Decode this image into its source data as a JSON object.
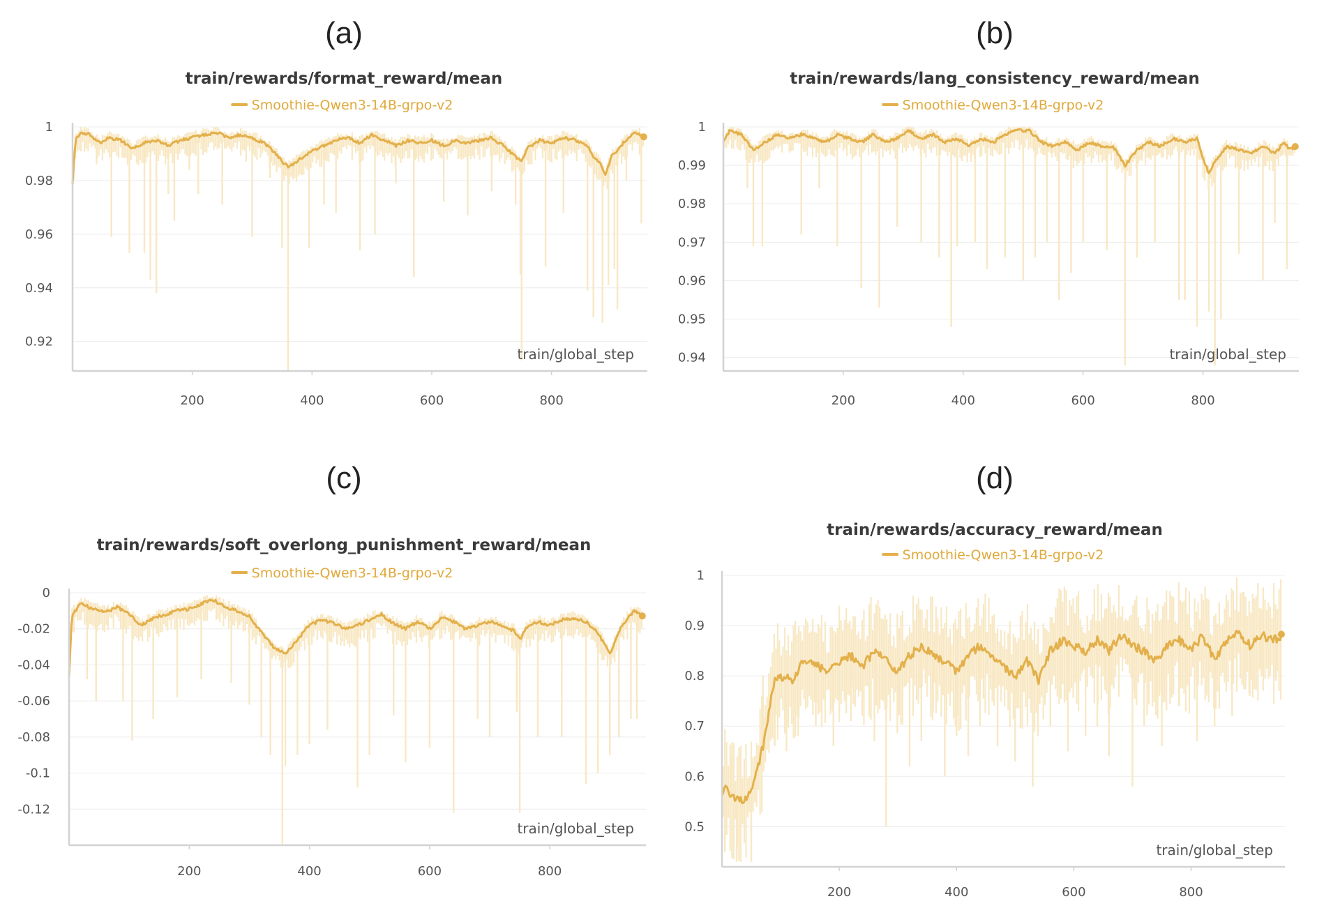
{
  "colors": {
    "series": "#e3b04b",
    "raw": "#f8e8c4"
  },
  "chart_data": [
    {
      "label": "(a)",
      "type": "line",
      "title": "train/rewards/format_reward/mean",
      "legend": "Smoothie-Qwen3-14B-grpo-v2",
      "xlabel": "train/global_step",
      "xlim": [
        0,
        960
      ],
      "ylim": [
        0.909,
        1.0
      ],
      "xticks": [
        200,
        400,
        600,
        800
      ],
      "xtick_labels": [
        "200",
        "400",
        "600",
        "800"
      ],
      "yticks": [
        1.0,
        0.98,
        0.96,
        0.94,
        0.92
      ],
      "ytick_labels": [
        "1",
        "0.98",
        "0.96",
        "0.94",
        "0.92"
      ],
      "smoothed": {
        "x": [
          0,
          5,
          15,
          30,
          45,
          60,
          80,
          100,
          120,
          140,
          160,
          180,
          200,
          220,
          240,
          260,
          280,
          300,
          320,
          340,
          350,
          360,
          380,
          400,
          420,
          440,
          460,
          480,
          500,
          520,
          540,
          560,
          580,
          600,
          620,
          640,
          660,
          680,
          700,
          720,
          740,
          750,
          760,
          780,
          800,
          820,
          840,
          860,
          870,
          880,
          890,
          900,
          910,
          920,
          940,
          955
        ],
        "y": [
          0.979,
          0.995,
          0.998,
          0.997,
          0.994,
          0.996,
          0.995,
          0.992,
          0.994,
          0.995,
          0.993,
          0.995,
          0.996,
          0.997,
          0.998,
          0.996,
          0.997,
          0.996,
          0.994,
          0.99,
          0.987,
          0.985,
          0.988,
          0.991,
          0.993,
          0.995,
          0.996,
          0.994,
          0.997,
          0.995,
          0.993,
          0.995,
          0.994,
          0.995,
          0.993,
          0.995,
          0.994,
          0.995,
          0.996,
          0.993,
          0.989,
          0.987,
          0.992,
          0.995,
          0.994,
          0.996,
          0.995,
          0.993,
          0.989,
          0.987,
          0.982,
          0.989,
          0.991,
          0.994,
          0.998,
          0.996
        ]
      },
      "raw_spikes": {
        "x": [
          40,
          65,
          95,
          120,
          130,
          140,
          160,
          170,
          195,
          210,
          250,
          290,
          300,
          330,
          350,
          360,
          380,
          395,
          420,
          440,
          480,
          505,
          540,
          570,
          620,
          660,
          700,
          740,
          748,
          750,
          790,
          820,
          860,
          870,
          885,
          895,
          905,
          910,
          925,
          950
        ],
        "y": [
          0.986,
          0.959,
          0.953,
          0.953,
          0.943,
          0.938,
          0.975,
          0.965,
          0.984,
          0.975,
          0.971,
          0.987,
          0.959,
          0.981,
          0.955,
          0.909,
          0.985,
          0.955,
          0.971,
          0.968,
          0.954,
          0.96,
          0.979,
          0.944,
          0.972,
          0.967,
          0.976,
          0.971,
          0.945,
          0.913,
          0.948,
          0.968,
          0.939,
          0.929,
          0.927,
          0.941,
          0.947,
          0.932,
          0.98,
          0.964
        ]
      }
    },
    {
      "label": "(b)",
      "type": "line",
      "title": "train/rewards/lang_consistency_reward/mean",
      "legend": "Smoothie-Qwen3-14B-grpo-v2",
      "xlabel": "train/global_step",
      "xlim": [
        0,
        960
      ],
      "ylim": [
        0.9365,
        1.0
      ],
      "xticks": [
        200,
        400,
        600,
        800
      ],
      "xtick_labels": [
        "200",
        "400",
        "600",
        "800"
      ],
      "yticks": [
        1.0,
        0.99,
        0.98,
        0.97,
        0.96,
        0.95,
        0.94
      ],
      "ytick_labels": [
        "1",
        "0.99",
        "0.98",
        "0.97",
        "0.96",
        "0.95",
        "0.94"
      ],
      "smoothed": {
        "x": [
          0,
          10,
          30,
          50,
          70,
          90,
          110,
          130,
          150,
          170,
          190,
          210,
          230,
          250,
          270,
          290,
          310,
          330,
          350,
          370,
          390,
          410,
          430,
          450,
          470,
          490,
          510,
          530,
          550,
          570,
          590,
          610,
          630,
          650,
          670,
          690,
          710,
          730,
          750,
          770,
          790,
          800,
          810,
          820,
          840,
          860,
          880,
          900,
          920,
          935,
          945,
          955
        ],
        "y": [
          0.996,
          0.999,
          0.998,
          0.994,
          0.996,
          0.998,
          0.997,
          0.998,
          0.997,
          0.996,
          0.998,
          0.997,
          0.996,
          0.998,
          0.996,
          0.997,
          0.999,
          0.997,
          0.998,
          0.996,
          0.997,
          0.995,
          0.997,
          0.996,
          0.998,
          0.999,
          0.999,
          0.996,
          0.995,
          0.996,
          0.994,
          0.996,
          0.995,
          0.995,
          0.99,
          0.994,
          0.996,
          0.995,
          0.997,
          0.996,
          0.997,
          0.992,
          0.988,
          0.991,
          0.995,
          0.994,
          0.993,
          0.995,
          0.993,
          0.996,
          0.994,
          0.995
        ]
      },
      "raw_spikes": {
        "x": [
          40,
          50,
          65,
          130,
          160,
          190,
          230,
          260,
          290,
          330,
          360,
          380,
          390,
          420,
          440,
          470,
          500,
          520,
          540,
          560,
          580,
          600,
          640,
          670,
          690,
          720,
          760,
          770,
          790,
          810,
          820,
          830,
          860,
          900,
          920,
          940
        ],
        "y": [
          0.984,
          0.969,
          0.969,
          0.972,
          0.984,
          0.969,
          0.958,
          0.953,
          0.974,
          0.97,
          0.966,
          0.948,
          0.969,
          0.97,
          0.963,
          0.966,
          0.96,
          0.966,
          0.97,
          0.955,
          0.962,
          0.97,
          0.968,
          0.938,
          0.966,
          0.97,
          0.955,
          0.955,
          0.948,
          0.952,
          0.938,
          0.95,
          0.967,
          0.96,
          0.975,
          0.963
        ]
      }
    },
    {
      "label": "(c)",
      "type": "line",
      "title": "train/rewards/soft_overlong_punishment_reward/mean",
      "legend": "Smoothie-Qwen3-14B-grpo-v2",
      "xlabel": "train/global_step",
      "xlim": [
        0,
        960
      ],
      "ylim": [
        -0.14,
        0.0
      ],
      "xticks": [
        200,
        400,
        600,
        800
      ],
      "xtick_labels": [
        "200",
        "400",
        "600",
        "800"
      ],
      "yticks": [
        0,
        -0.02,
        -0.04,
        -0.06,
        -0.08,
        -0.1,
        -0.12
      ],
      "ytick_labels": [
        "0",
        "-0.02",
        "-0.04",
        "-0.06",
        "-0.08",
        "-0.1",
        "-0.12"
      ],
      "smoothed": {
        "x": [
          0,
          5,
          20,
          40,
          60,
          80,
          100,
          120,
          140,
          160,
          180,
          200,
          220,
          240,
          260,
          280,
          300,
          320,
          340,
          360,
          380,
          400,
          420,
          440,
          460,
          480,
          500,
          520,
          540,
          560,
          580,
          600,
          620,
          640,
          660,
          680,
          700,
          720,
          740,
          750,
          760,
          780,
          800,
          820,
          840,
          860,
          880,
          890,
          900,
          920,
          940,
          955
        ],
        "y": [
          -0.046,
          -0.012,
          -0.006,
          -0.009,
          -0.011,
          -0.008,
          -0.012,
          -0.018,
          -0.014,
          -0.012,
          -0.01,
          -0.009,
          -0.006,
          -0.004,
          -0.008,
          -0.01,
          -0.013,
          -0.022,
          -0.03,
          -0.034,
          -0.026,
          -0.018,
          -0.015,
          -0.017,
          -0.02,
          -0.018,
          -0.015,
          -0.012,
          -0.017,
          -0.02,
          -0.016,
          -0.02,
          -0.014,
          -0.016,
          -0.02,
          -0.018,
          -0.016,
          -0.018,
          -0.021,
          -0.026,
          -0.02,
          -0.016,
          -0.018,
          -0.015,
          -0.014,
          -0.016,
          -0.022,
          -0.028,
          -0.034,
          -0.018,
          -0.01,
          -0.013
        ]
      },
      "raw_spikes": {
        "x": [
          30,
          45,
          90,
          105,
          140,
          180,
          220,
          270,
          300,
          320,
          335,
          355,
          360,
          380,
          400,
          430,
          480,
          500,
          540,
          560,
          600,
          640,
          680,
          700,
          745,
          750,
          780,
          820,
          860,
          880,
          900,
          915,
          935,
          945
        ],
        "y": [
          -0.048,
          -0.06,
          -0.06,
          -0.082,
          -0.07,
          -0.058,
          -0.048,
          -0.05,
          -0.062,
          -0.08,
          -0.09,
          -0.14,
          -0.096,
          -0.09,
          -0.084,
          -0.076,
          -0.108,
          -0.09,
          -0.068,
          -0.094,
          -0.086,
          -0.122,
          -0.07,
          -0.08,
          -0.066,
          -0.122,
          -0.08,
          -0.08,
          -0.106,
          -0.1,
          -0.09,
          -0.08,
          -0.07,
          -0.07
        ]
      }
    },
    {
      "label": "(d)",
      "type": "line",
      "title": "train/rewards/accuracy_reward/mean",
      "legend": "Smoothie-Qwen3-14B-grpo-v2",
      "xlabel": "train/global_step",
      "xlim": [
        0,
        960
      ],
      "ylim": [
        0.42,
        1.0
      ],
      "xticks": [
        200,
        400,
        600,
        800
      ],
      "xtick_labels": [
        "200",
        "400",
        "600",
        "800"
      ],
      "yticks": [
        1.0,
        0.9,
        0.8,
        0.7,
        0.6,
        0.5
      ],
      "ytick_labels": [
        "1",
        "0.9",
        "0.8",
        "0.7",
        "0.6",
        "0.5"
      ],
      "smoothed": {
        "x": [
          0,
          5,
          15,
          30,
          45,
          60,
          70,
          80,
          90,
          100,
          120,
          140,
          160,
          180,
          200,
          220,
          240,
          260,
          280,
          300,
          320,
          340,
          360,
          380,
          400,
          420,
          440,
          460,
          480,
          500,
          520,
          540,
          560,
          580,
          600,
          620,
          640,
          660,
          680,
          700,
          720,
          740,
          760,
          780,
          800,
          820,
          840,
          860,
          880,
          900,
          920,
          940,
          955
        ],
        "y": [
          0.56,
          0.59,
          0.56,
          0.55,
          0.56,
          0.61,
          0.66,
          0.73,
          0.79,
          0.8,
          0.79,
          0.83,
          0.82,
          0.81,
          0.83,
          0.84,
          0.82,
          0.85,
          0.83,
          0.81,
          0.84,
          0.86,
          0.84,
          0.83,
          0.81,
          0.84,
          0.86,
          0.84,
          0.82,
          0.8,
          0.83,
          0.79,
          0.85,
          0.87,
          0.86,
          0.85,
          0.87,
          0.85,
          0.88,
          0.86,
          0.85,
          0.83,
          0.86,
          0.87,
          0.85,
          0.88,
          0.83,
          0.87,
          0.89,
          0.86,
          0.88,
          0.87,
          0.88
        ]
      },
      "raw_spikes": {
        "x": [
          5,
          15,
          25,
          35,
          50,
          70,
          90,
          110,
          130,
          160,
          190,
          220,
          260,
          280,
          300,
          320,
          340,
          360,
          380,
          400,
          420,
          440,
          470,
          500,
          530,
          560,
          590,
          620,
          640,
          660,
          700,
          720,
          750,
          780,
          810,
          840,
          870,
          900,
          920,
          945
        ],
        "y": [
          0.45,
          0.64,
          0.43,
          0.52,
          0.43,
          0.8,
          0.66,
          0.65,
          0.68,
          0.7,
          0.66,
          0.71,
          0.67,
          0.5,
          0.72,
          0.62,
          0.67,
          0.73,
          0.6,
          0.68,
          0.64,
          0.7,
          0.66,
          0.63,
          0.58,
          0.7,
          0.65,
          0.68,
          0.7,
          0.64,
          0.58,
          0.7,
          0.66,
          0.74,
          0.67,
          0.7,
          0.72,
          0.76,
          0.8,
          0.79
        ]
      }
    }
  ]
}
